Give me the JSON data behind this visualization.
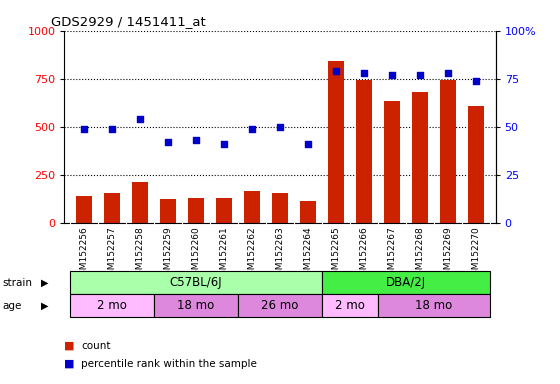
{
  "title": "GDS2929 / 1451411_at",
  "samples": [
    "GSM152256",
    "GSM152257",
    "GSM152258",
    "GSM152259",
    "GSM152260",
    "GSM152261",
    "GSM152262",
    "GSM152263",
    "GSM152264",
    "GSM152265",
    "GSM152266",
    "GSM152267",
    "GSM152268",
    "GSM152269",
    "GSM152270"
  ],
  "counts": [
    140,
    155,
    210,
    125,
    130,
    130,
    165,
    155,
    115,
    840,
    745,
    635,
    680,
    745,
    610
  ],
  "percentile": [
    49,
    49,
    54,
    42,
    43,
    41,
    49,
    50,
    41,
    79,
    78,
    77,
    77,
    78,
    74
  ],
  "bar_color": "#cc2200",
  "dot_color": "#0000cc",
  "ylim_left": [
    0,
    1000
  ],
  "ylim_right": [
    0,
    100
  ],
  "yticks_left": [
    0,
    250,
    500,
    750,
    1000
  ],
  "yticks_right": [
    0,
    25,
    50,
    75,
    100
  ],
  "strain_labels": [
    {
      "label": "C57BL/6J",
      "start": 0,
      "end": 8,
      "color": "#aaffaa"
    },
    {
      "label": "DBA/2J",
      "start": 9,
      "end": 14,
      "color": "#44ee44"
    }
  ],
  "age_labels": [
    {
      "label": "2 mo",
      "start": 0,
      "end": 2,
      "color": "#ffbbff"
    },
    {
      "label": "18 mo",
      "start": 3,
      "end": 5,
      "color": "#dd88dd"
    },
    {
      "label": "26 mo",
      "start": 6,
      "end": 8,
      "color": "#dd88dd"
    },
    {
      "label": "2 mo",
      "start": 9,
      "end": 10,
      "color": "#ffbbff"
    },
    {
      "label": "18 mo",
      "start": 11,
      "end": 14,
      "color": "#dd88dd"
    }
  ],
  "legend_items": [
    {
      "label": "count",
      "color": "#cc2200"
    },
    {
      "label": "percentile rank within the sample",
      "color": "#0000cc"
    }
  ],
  "plot_bg_color": "#d8d8d8",
  "bg_color": "#ffffff",
  "bar_width": 0.55
}
